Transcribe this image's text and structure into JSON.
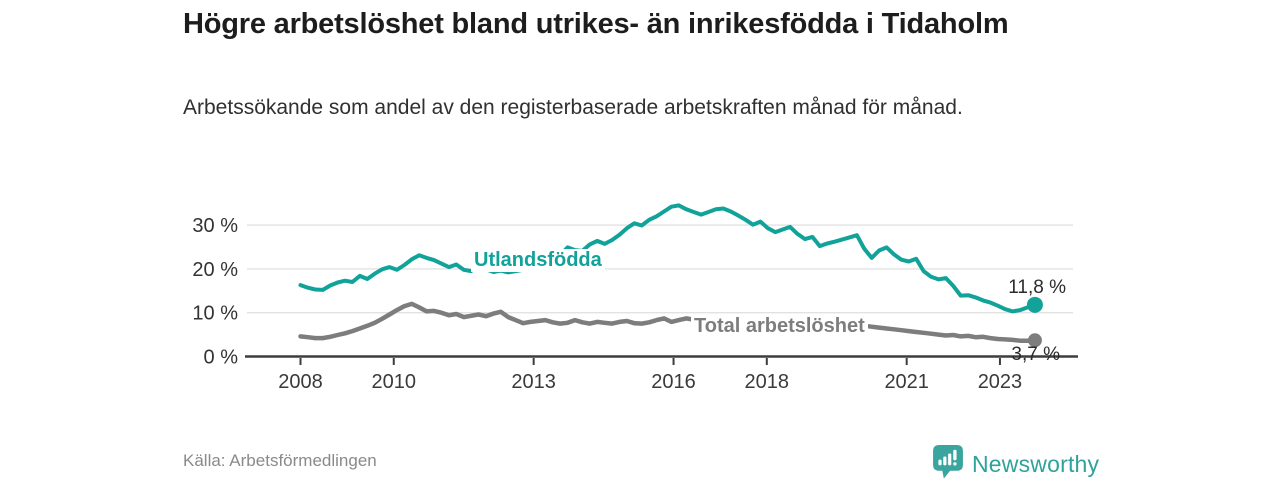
{
  "header": {
    "title": "Högre arbetslöshet bland utrikes- än inrikesfödda i Tidaholm",
    "subtitle": "Arbetssökande som andel av den registerbaserade arbetskraften månad för månad."
  },
  "footer": {
    "source": "Källa: Arbetsförmedlingen",
    "brand": "Newsworthy",
    "brand_color": "#2ea29b"
  },
  "chart_data": {
    "type": "line",
    "title": "Högre arbetslöshet bland utrikes- än inrikesfödda i Tidaholm",
    "xlabel": "",
    "ylabel": "Arbetssökande som andel av den registerbaserade arbetskraften",
    "x_unit": "år (månadsdata)",
    "x_range": [
      2008.0,
      2023.75
    ],
    "ylim": [
      0,
      36
    ],
    "grid": "horizontal",
    "legend_position": "inline-labels",
    "yticks": [
      {
        "value": 0,
        "label": "0 %"
      },
      {
        "value": 10,
        "label": "10 %"
      },
      {
        "value": 20,
        "label": "20 %"
      },
      {
        "value": 30,
        "label": "30 %"
      }
    ],
    "xticks": [
      {
        "value": 2008,
        "label": "2008"
      },
      {
        "value": 2010,
        "label": "2010"
      },
      {
        "value": 2013,
        "label": "2013"
      },
      {
        "value": 2016,
        "label": "2016"
      },
      {
        "value": 2018,
        "label": "2018"
      },
      {
        "value": 2021,
        "label": "2021"
      },
      {
        "value": 2023,
        "label": "2023"
      }
    ],
    "series": [
      {
        "name": "Total arbetslöshet",
        "color": "#7d7d7d",
        "end_value": 3.7,
        "end_label": "3,7 %",
        "line_width": 4.5,
        "values": [
          4.6,
          4.4,
          4.2,
          4.2,
          4.5,
          4.9,
          5.3,
          5.8,
          6.4,
          7.0,
          7.7,
          8.6,
          9.6,
          10.6,
          11.5,
          12.0,
          11.2,
          10.3,
          10.4,
          10.0,
          9.4,
          9.7,
          9.0,
          9.3,
          9.6,
          9.2,
          9.8,
          10.2,
          9.0,
          8.3,
          7.6,
          7.9,
          8.1,
          8.3,
          7.8,
          7.5,
          7.7,
          8.3,
          7.8,
          7.5,
          7.9,
          7.7,
          7.5,
          7.9,
          8.1,
          7.6,
          7.5,
          7.8,
          8.3,
          8.7,
          7.9,
          8.3,
          8.7,
          8.4,
          8.2,
          8.5,
          8.1,
          7.8,
          7.5,
          7.3,
          7.2,
          7.0,
          6.9,
          6.7,
          6.6,
          6.5,
          6.4,
          6.3,
          6.3,
          6.4,
          6.5,
          6.6,
          6.8,
          7.2,
          7.5,
          7.3,
          7.0,
          6.8,
          6.6,
          6.4,
          6.2,
          6.0,
          5.8,
          5.6,
          5.4,
          5.2,
          5.0,
          4.8,
          4.9,
          4.6,
          4.7,
          4.4,
          4.5,
          4.2,
          4.0,
          3.9,
          3.8,
          3.6,
          3.6,
          3.7
        ]
      },
      {
        "name": "Utlandsfödda",
        "color": "#11a29a",
        "end_value": 11.8,
        "end_label": "11,8 %",
        "line_width": 4,
        "values": [
          16.3,
          15.7,
          15.3,
          15.2,
          16.2,
          16.9,
          17.3,
          17.0,
          18.4,
          17.7,
          18.9,
          19.9,
          20.4,
          19.8,
          20.9,
          22.2,
          23.1,
          22.5,
          22.0,
          21.2,
          20.4,
          21.0,
          19.8,
          19.5,
          20.8,
          19.9,
          19.3,
          19.6,
          19.2,
          19.5,
          19.8,
          20.3,
          20.9,
          21.6,
          22.4,
          23.1,
          24.9,
          24.3,
          24.1,
          25.6,
          26.4,
          25.7,
          26.6,
          27.8,
          29.3,
          30.4,
          29.9,
          31.2,
          32.0,
          33.1,
          34.2,
          34.5,
          33.6,
          33.0,
          32.4,
          33.0,
          33.6,
          33.8,
          33.1,
          32.2,
          31.2,
          30.1,
          30.8,
          29.3,
          28.4,
          29.0,
          29.6,
          28.0,
          26.8,
          27.3,
          25.2,
          25.8,
          26.2,
          26.7,
          27.2,
          27.7,
          24.6,
          22.5,
          24.2,
          24.9,
          23.3,
          22.1,
          21.7,
          22.3,
          19.5,
          18.2,
          17.6,
          17.9,
          16.1,
          13.9,
          14.0,
          13.5,
          12.8,
          12.3,
          11.6,
          10.8,
          10.3,
          10.6,
          11.2,
          11.8
        ]
      }
    ]
  }
}
